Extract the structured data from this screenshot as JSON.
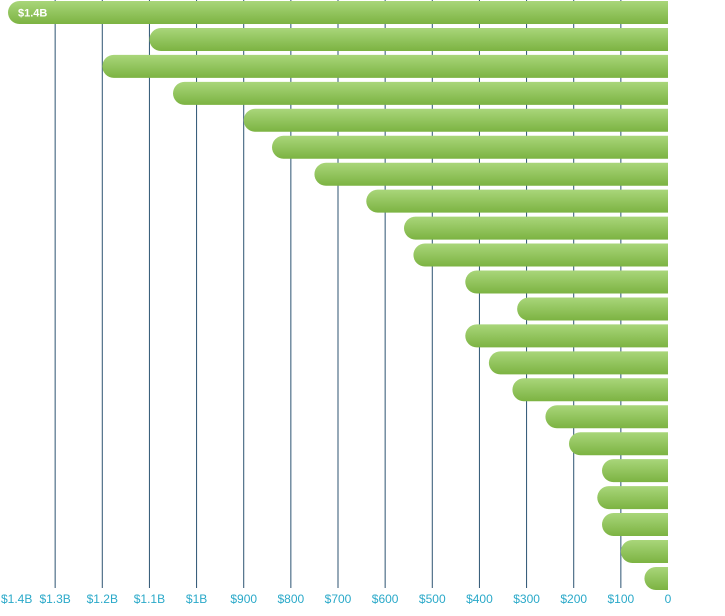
{
  "chart_data": {
    "type": "bar",
    "orientation": "horizontal",
    "direction": "right-to-left",
    "values": [
      1400,
      1100,
      1200,
      1050,
      900,
      840,
      750,
      640,
      560,
      540,
      430,
      320,
      430,
      380,
      330,
      260,
      210,
      140,
      150,
      140,
      100,
      50
    ],
    "data_labels": [
      "$1.4B"
    ],
    "x_ticks": [
      "$1.4B",
      "$1.3B",
      "$1.2B",
      "$1.1B",
      "$1B",
      "$900",
      "$800",
      "$700",
      "$600",
      "$500",
      "$400",
      "$300",
      "$200",
      "$100",
      "0"
    ],
    "x_tick_values": [
      1400,
      1300,
      1200,
      1100,
      1000,
      900,
      800,
      700,
      600,
      500,
      400,
      300,
      200,
      100,
      0
    ],
    "title": "",
    "xlabel": "",
    "ylabel": "",
    "xlim": [
      0,
      1400
    ],
    "grid": true,
    "colors": {
      "bar_top": "#a9d67a",
      "bar_bottom": "#7cb342",
      "grid": "#2c5372",
      "tick": "#2aa9c9",
      "data_label": "#ffffff"
    }
  }
}
